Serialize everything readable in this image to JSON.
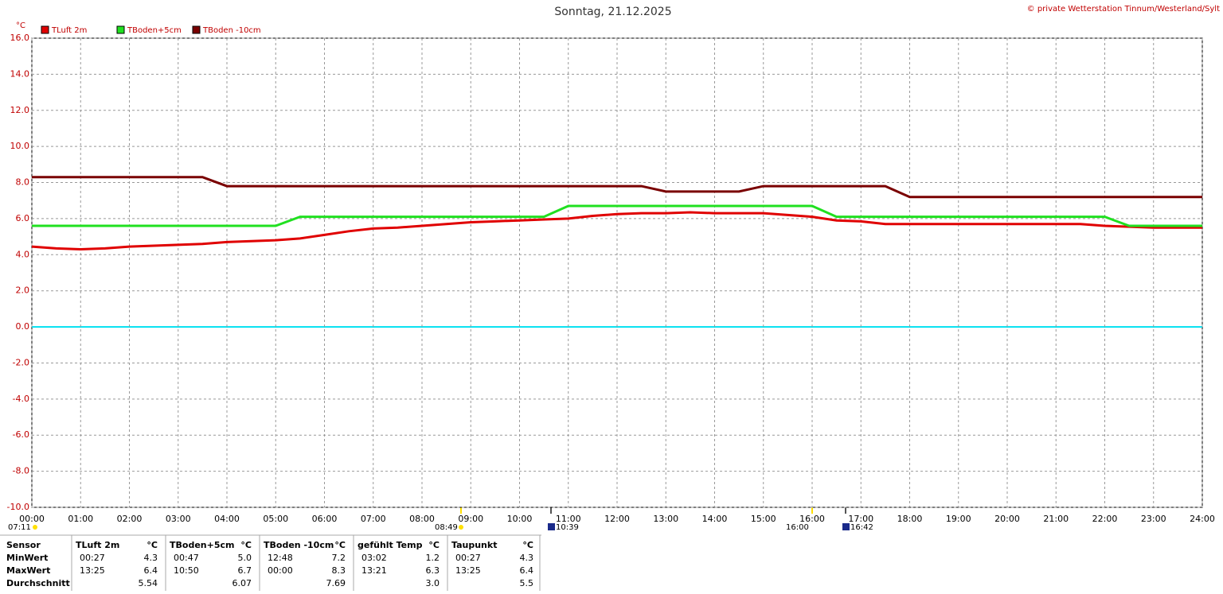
{
  "chart_data": {
    "type": "line",
    "title": "Sonntag, 21.12.2025",
    "copyright": "© private Wetterstation Tinnum/Westerland/Sylt",
    "ylabel": "°C",
    "x": [
      0,
      0.5,
      1,
      1.5,
      2,
      2.5,
      3,
      3.5,
      4,
      4.5,
      5,
      5.5,
      6,
      6.5,
      7,
      7.5,
      8,
      8.5,
      9,
      9.5,
      10,
      10.5,
      11,
      11.5,
      12,
      12.5,
      13,
      13.5,
      14,
      14.5,
      15,
      15.5,
      16,
      16.5,
      17,
      17.5,
      18,
      18.5,
      19,
      19.5,
      20,
      20.5,
      21,
      21.5,
      22,
      22.5,
      23,
      23.5,
      24
    ],
    "series": [
      {
        "name": "TLuft 2m",
        "color": "#e00000",
        "values": [
          4.45,
          4.35,
          4.3,
          4.35,
          4.45,
          4.5,
          4.55,
          4.6,
          4.7,
          4.75,
          4.8,
          4.9,
          5.1,
          5.3,
          5.45,
          5.5,
          5.6,
          5.7,
          5.8,
          5.85,
          5.9,
          5.95,
          6.0,
          6.15,
          6.25,
          6.3,
          6.3,
          6.35,
          6.3,
          6.3,
          6.3,
          6.2,
          6.1,
          5.9,
          5.85,
          5.7,
          5.7,
          5.7,
          5.7,
          5.7,
          5.7,
          5.7,
          5.7,
          5.7,
          5.6,
          5.55,
          5.5,
          5.5,
          5.5
        ]
      },
      {
        "name": "TBoden+5cm",
        "color": "#20e020",
        "values": [
          5.6,
          5.6,
          5.6,
          5.6,
          5.6,
          5.6,
          5.6,
          5.6,
          5.6,
          5.6,
          5.6,
          6.1,
          6.1,
          6.1,
          6.1,
          6.1,
          6.1,
          6.1,
          6.1,
          6.1,
          6.1,
          6.1,
          6.7,
          6.7,
          6.7,
          6.7,
          6.7,
          6.7,
          6.7,
          6.7,
          6.7,
          6.7,
          6.7,
          6.1,
          6.1,
          6.1,
          6.1,
          6.1,
          6.1,
          6.1,
          6.1,
          6.1,
          6.1,
          6.1,
          6.1,
          5.6,
          5.6,
          5.6,
          5.6
        ]
      },
      {
        "name": "TBoden -10cm",
        "color": "#7a0000",
        "values": [
          8.3,
          8.3,
          8.3,
          8.3,
          8.3,
          8.3,
          8.3,
          8.3,
          7.8,
          7.8,
          7.8,
          7.8,
          7.8,
          7.8,
          7.8,
          7.8,
          7.8,
          7.8,
          7.8,
          7.8,
          7.8,
          7.8,
          7.8,
          7.8,
          7.8,
          7.8,
          7.5,
          7.5,
          7.5,
          7.5,
          7.8,
          7.8,
          7.8,
          7.8,
          7.8,
          7.8,
          7.2,
          7.2,
          7.2,
          7.2,
          7.2,
          7.2,
          7.2,
          7.2,
          7.2,
          7.2,
          7.2,
          7.2,
          7.2
        ]
      }
    ],
    "xlim": [
      0,
      24
    ],
    "xticks": [
      {
        "value": 0,
        "label": "00:00"
      },
      {
        "value": 1,
        "label": "01:00"
      },
      {
        "value": 2,
        "label": "02:00"
      },
      {
        "value": 3,
        "label": "03:00"
      },
      {
        "value": 4,
        "label": "04:00"
      },
      {
        "value": 5,
        "label": "05:00"
      },
      {
        "value": 6,
        "label": "06:00"
      },
      {
        "value": 7,
        "label": "07:00"
      },
      {
        "value": 8,
        "label": "08:00"
      },
      {
        "value": 9,
        "label": "09:00"
      },
      {
        "value": 10,
        "label": "10:00"
      },
      {
        "value": 11,
        "label": "11:00"
      },
      {
        "value": 12,
        "label": "12:00"
      },
      {
        "value": 13,
        "label": "13:00"
      },
      {
        "value": 14,
        "label": "14:00"
      },
      {
        "value": 15,
        "label": "15:00"
      },
      {
        "value": 16,
        "label": "16:00"
      },
      {
        "value": 17,
        "label": "17:00"
      },
      {
        "value": 18,
        "label": "18:00"
      },
      {
        "value": 19,
        "label": "19:00"
      },
      {
        "value": 20,
        "label": "20:00"
      },
      {
        "value": 21,
        "label": "21:00"
      },
      {
        "value": 22,
        "label": "22:00"
      },
      {
        "value": 23,
        "label": "23:00"
      },
      {
        "value": 24,
        "label": "24:00"
      }
    ],
    "ylim": [
      -10,
      16
    ],
    "yticks": [
      {
        "value": 16,
        "label": "16.0"
      },
      {
        "value": 14,
        "label": "14.0"
      },
      {
        "value": 12,
        "label": "12.0"
      },
      {
        "value": 10,
        "label": "10.0"
      },
      {
        "value": 8,
        "label": "8.0"
      },
      {
        "value": 6,
        "label": "6.0"
      },
      {
        "value": 4,
        "label": "4.0"
      },
      {
        "value": 2,
        "label": "2.0"
      },
      {
        "value": 0,
        "label": "0.0"
      },
      {
        "value": -2,
        "label": "-2.0"
      },
      {
        "value": -4,
        "label": "-4.0"
      },
      {
        "value": -6,
        "label": "-6.0"
      },
      {
        "value": -8,
        "label": "-8.0"
      },
      {
        "value": -10,
        "label": "-10.0"
      }
    ],
    "grid": true,
    "zero_line_color": "#00e0f0",
    "time_markers": [
      "07:11",
      "08:49",
      "10:39",
      "16:00",
      "16:42"
    ]
  },
  "stats_table": {
    "headers": [
      "Sensor",
      "TLuft 2m",
      "°C",
      "TBoden+5cm",
      "°C",
      "TBoden -10cm",
      "°C",
      "gefühlt Temp",
      "°C",
      "Taupunkt",
      "°C"
    ],
    "rows": [
      [
        "MinWert",
        "00:27",
        "4.3",
        "00:47",
        "5.0",
        "12:48",
        "7.2",
        "03:02",
        "1.2",
        "00:27",
        "4.3"
      ],
      [
        "MaxWert",
        "13:25",
        "6.4",
        "10:50",
        "6.7",
        "00:00",
        "8.3",
        "13:21",
        "6.3",
        "13:25",
        "6.4"
      ],
      [
        "Durchschnitt",
        null,
        "5.54",
        null,
        "6.07",
        null,
        "7.69",
        null,
        "3.0",
        null,
        "5.5"
      ]
    ]
  }
}
